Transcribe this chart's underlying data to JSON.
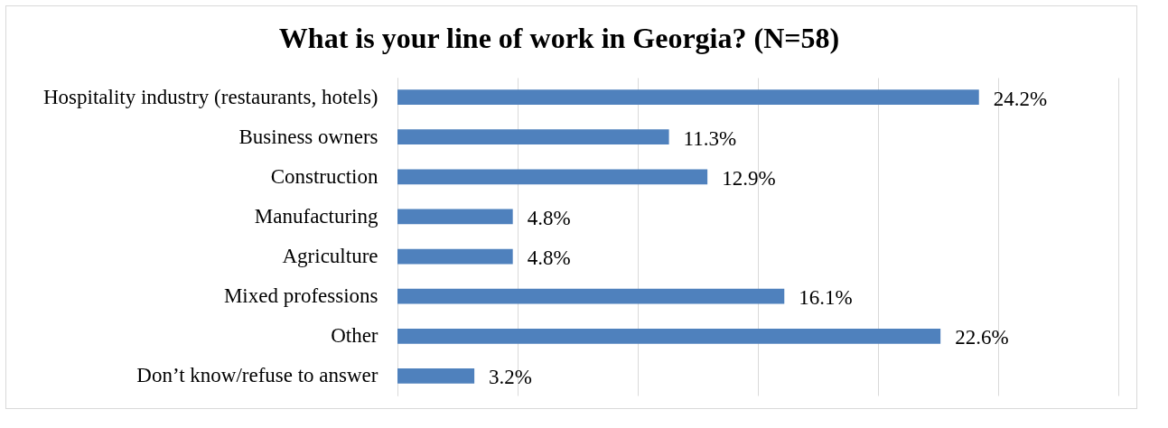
{
  "chart_data": {
    "type": "bar",
    "orientation": "horizontal",
    "title": "What is your line of work in Georgia? (N=58)",
    "categories": [
      "Hospitality industry (restaurants, hotels)",
      "Business owners",
      "Construction",
      "Manufacturing",
      "Agriculture",
      "Mixed professions",
      "Other",
      "Don’t know/refuse to answer"
    ],
    "values": [
      24.2,
      11.3,
      12.9,
      4.8,
      4.8,
      16.1,
      22.6,
      3.2
    ],
    "value_labels": [
      "24.2%",
      "11.3%",
      "12.9%",
      "4.8%",
      "4.8%",
      "16.1%",
      "22.6%",
      "3.2%"
    ],
    "color": "#4f81bd",
    "xlim": [
      0,
      30
    ],
    "xticks": [
      {
        "value": 0,
        "label": null
      },
      {
        "value": 5,
        "label": null
      },
      {
        "value": 10,
        "label": null
      },
      {
        "value": 15,
        "label": null
      },
      {
        "value": 20,
        "label": null
      },
      {
        "value": 25,
        "label": null
      },
      {
        "value": 30,
        "label": null
      }
    ],
    "tick_labels": "y",
    "grid": "x"
  }
}
